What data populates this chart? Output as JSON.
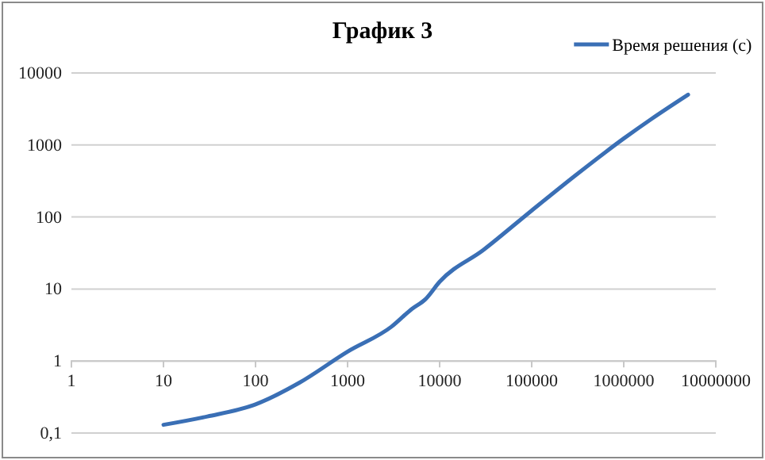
{
  "chart_data": {
    "type": "line",
    "title": "График 3",
    "log": "xy",
    "grid": "y",
    "legend": "top right",
    "line_style": "solid",
    "marker": "none",
    "xlim": [
      1,
      10000000
    ],
    "xticks": [
      1,
      10,
      100,
      1000,
      10000,
      100000,
      1000000,
      10000000
    ],
    "ylim": [
      0.1,
      10000
    ],
    "yticks": [
      {
        "value": 0.1,
        "label": "0,1"
      },
      1,
      10,
      100,
      1000,
      10000
    ],
    "series": [
      {
        "name": "Время решения (с)",
        "color": "#3a6fb5",
        "x": [
          10,
          30,
          100,
          300,
          1000,
          3000,
          5000,
          7000,
          10000,
          30000,
          100000,
          300000,
          1000000,
          2000000,
          5000000
        ],
        "values": [
          0.13,
          0.17,
          0.25,
          0.5,
          1.35,
          3,
          5.3,
          7.2,
          12.6,
          35,
          123,
          380,
          1230,
          2300,
          5000
        ]
      }
    ]
  }
}
